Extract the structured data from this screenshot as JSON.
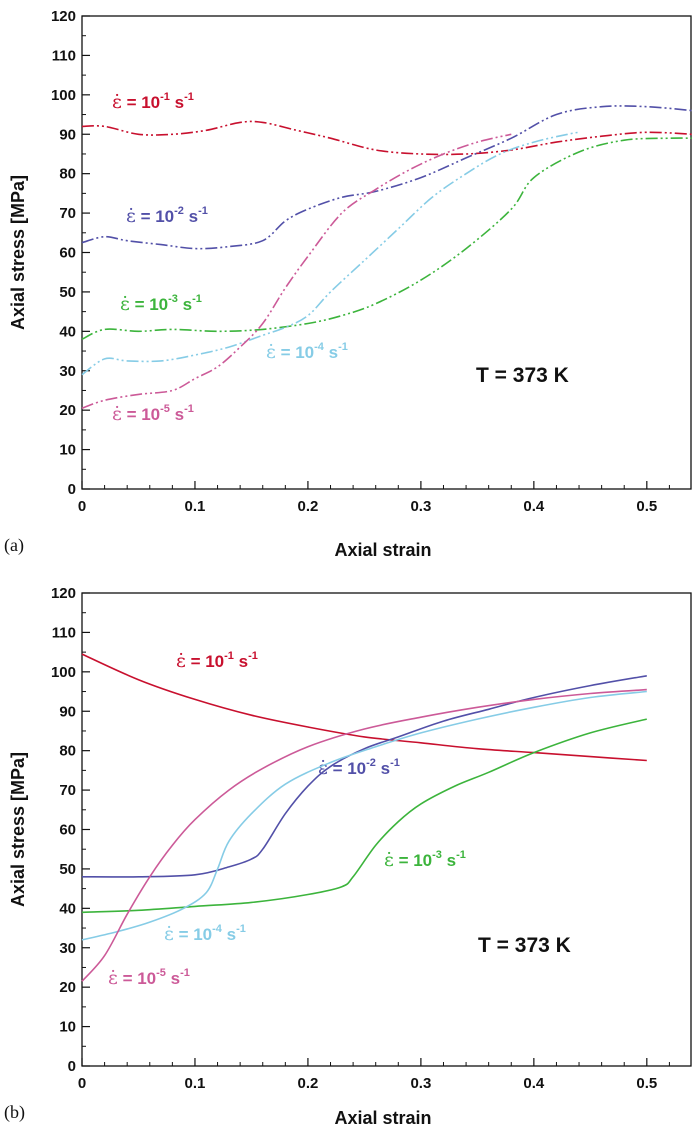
{
  "chart_data": [
    {
      "type": "line",
      "panel_label": "(a)",
      "line_style": "dash-dot",
      "xlabel": "Axial strain",
      "ylabel": "Axial stress [MPa]",
      "xlim": [
        0,
        0.54
      ],
      "ylim": [
        0,
        120
      ],
      "x_ticks": [
        "0",
        "0.1",
        "0.2",
        "0.3",
        "0.4",
        "0.5"
      ],
      "y_ticks": [
        "0",
        "10",
        "20",
        "30",
        "40",
        "50",
        "60",
        "70",
        "80",
        "90",
        "100",
        "110",
        "120"
      ],
      "annotation": "T = 373 K",
      "series": [
        {
          "name": "10^-1 s^-1",
          "exponent": "-1",
          "color": "#c8102e",
          "x": [
            0,
            0.02,
            0.05,
            0.08,
            0.11,
            0.14,
            0.16,
            0.19,
            0.22,
            0.26,
            0.3,
            0.34,
            0.38,
            0.42,
            0.46,
            0.5,
            0.54
          ],
          "y": [
            92,
            92,
            90,
            90,
            91,
            93,
            93,
            91,
            89,
            86,
            85,
            85,
            86,
            88,
            89.5,
            90.5,
            90
          ]
        },
        {
          "name": "10^-2 s^-1",
          "exponent": "-2",
          "color": "#5250a8",
          "x": [
            0,
            0.02,
            0.04,
            0.07,
            0.1,
            0.13,
            0.16,
            0.18,
            0.2,
            0.23,
            0.26,
            0.3,
            0.34,
            0.38,
            0.42,
            0.46,
            0.5,
            0.54
          ],
          "y": [
            62.5,
            64,
            63,
            62,
            61,
            61.5,
            63,
            68,
            71,
            74,
            75.5,
            79,
            84,
            89,
            95,
            97,
            97,
            96
          ]
        },
        {
          "name": "10^-3 s^-1",
          "exponent": "-3",
          "color": "#3cb43c",
          "x": [
            0,
            0.02,
            0.05,
            0.08,
            0.12,
            0.16,
            0.2,
            0.23,
            0.26,
            0.3,
            0.34,
            0.38,
            0.4,
            0.44,
            0.48,
            0.52,
            0.54
          ],
          "y": [
            38,
            40.5,
            40,
            40.5,
            40,
            40.5,
            42,
            44,
            47,
            53,
            61,
            71,
            79,
            85.5,
            88.5,
            89,
            89
          ]
        },
        {
          "name": "10^-4 s^-1",
          "exponent": "-4",
          "color": "#86cce6",
          "x": [
            0,
            0.02,
            0.04,
            0.07,
            0.1,
            0.13,
            0.16,
            0.18,
            0.2,
            0.22,
            0.25,
            0.28,
            0.31,
            0.34,
            0.37,
            0.4,
            0.43,
            0.44
          ],
          "y": [
            29,
            33,
            32.5,
            32.5,
            34,
            36,
            39,
            41,
            44,
            50,
            58,
            66,
            74,
            80,
            85,
            88,
            90,
            90.5
          ]
        },
        {
          "name": "10^-5 s^-1",
          "exponent": "-5",
          "color": "#cc5a98",
          "x": [
            0,
            0.02,
            0.05,
            0.08,
            0.1,
            0.12,
            0.14,
            0.16,
            0.18,
            0.2,
            0.23,
            0.26,
            0.29,
            0.32,
            0.35,
            0.38
          ],
          "y": [
            20.5,
            22.5,
            24,
            25,
            28,
            31,
            36,
            42,
            51,
            59,
            70,
            76,
            81,
            85,
            88,
            90
          ]
        }
      ]
    },
    {
      "type": "line",
      "panel_label": "(b)",
      "line_style": "solid",
      "xlabel": "Axial strain",
      "ylabel": "Axial stress [MPa]",
      "xlim": [
        0,
        0.54
      ],
      "ylim": [
        0,
        120
      ],
      "x_ticks": [
        "0",
        "0.1",
        "0.2",
        "0.3",
        "0.4",
        "0.5"
      ],
      "y_ticks": [
        "0",
        "10",
        "20",
        "30",
        "40",
        "50",
        "60",
        "70",
        "80",
        "90",
        "100",
        "110",
        "120"
      ],
      "annotation": "T = 373 K",
      "series": [
        {
          "name": "10^-1 s^-1",
          "exponent": "-1",
          "color": "#c8102e",
          "x": [
            0,
            0.05,
            0.1,
            0.15,
            0.2,
            0.25,
            0.3,
            0.35,
            0.4,
            0.45,
            0.5
          ],
          "y": [
            104.5,
            98,
            93,
            89,
            86,
            83.5,
            82,
            80.5,
            79.5,
            78.5,
            77.5
          ]
        },
        {
          "name": "10^-2 s^-1",
          "exponent": "-2",
          "color": "#5250a8",
          "x": [
            0,
            0.05,
            0.1,
            0.13,
            0.15,
            0.16,
            0.18,
            0.2,
            0.22,
            0.25,
            0.28,
            0.32,
            0.36,
            0.4,
            0.45,
            0.5
          ],
          "y": [
            48,
            48,
            48.5,
            50.5,
            52.5,
            55,
            64,
            71,
            76,
            80.5,
            83.5,
            87.5,
            90.5,
            93.5,
            96.5,
            99
          ]
        },
        {
          "name": "10^-3 s^-1",
          "exponent": "-3",
          "color": "#3cb43c",
          "x": [
            0,
            0.05,
            0.1,
            0.15,
            0.2,
            0.23,
            0.24,
            0.26,
            0.28,
            0.3,
            0.33,
            0.36,
            0.4,
            0.45,
            0.5
          ],
          "y": [
            39,
            39.5,
            40.5,
            41.5,
            43.5,
            45.5,
            48,
            56,
            62,
            66.5,
            71,
            74.5,
            79.5,
            84.5,
            88
          ]
        },
        {
          "name": "10^-4 s^-1",
          "exponent": "-4",
          "color": "#86cce6",
          "x": [
            0,
            0.03,
            0.06,
            0.09,
            0.11,
            0.12,
            0.13,
            0.15,
            0.18,
            0.22,
            0.26,
            0.3,
            0.35,
            0.4,
            0.45,
            0.5
          ],
          "y": [
            32,
            34,
            36.5,
            40,
            44,
            50,
            57,
            64,
            71.5,
            77,
            81,
            84.5,
            88,
            91,
            93.5,
            95
          ]
        },
        {
          "name": "10^-5 s^-1",
          "exponent": "-5",
          "color": "#cc5a98",
          "x": [
            0,
            0.02,
            0.04,
            0.06,
            0.08,
            0.1,
            0.13,
            0.16,
            0.2,
            0.25,
            0.3,
            0.35,
            0.4,
            0.45,
            0.5
          ],
          "y": [
            21.5,
            28,
            38.5,
            48,
            56,
            62.5,
            70,
            75.5,
            81,
            85.5,
            88.5,
            91,
            93,
            94.5,
            95.5
          ]
        }
      ]
    }
  ]
}
